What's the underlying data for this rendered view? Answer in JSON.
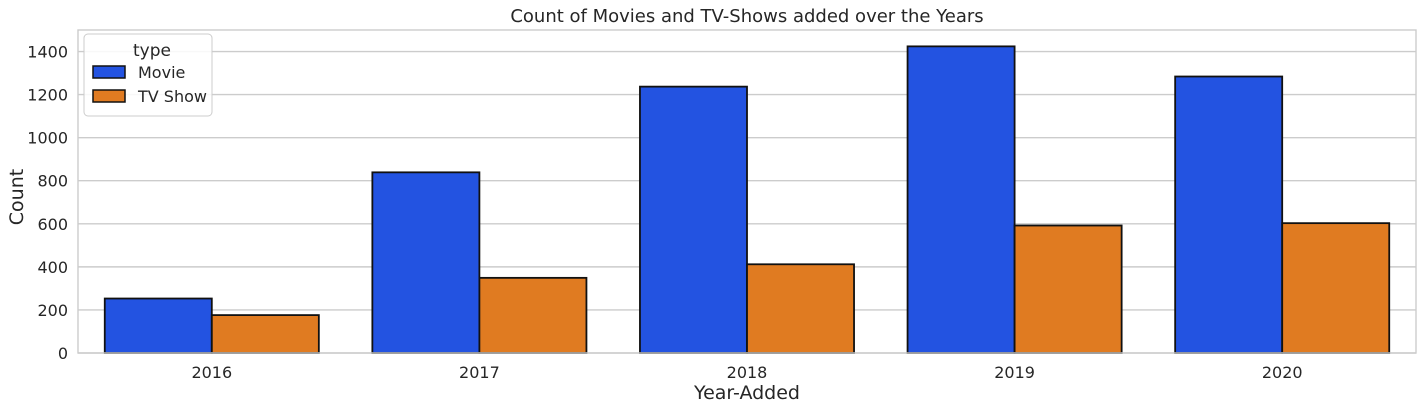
{
  "chart_data": {
    "type": "bar",
    "title": "Count of Movies and TV-Shows added over the Years",
    "xlabel": "Year-Added",
    "ylabel": "Count",
    "categories": [
      "2016",
      "2017",
      "2018",
      "2019",
      "2020"
    ],
    "series": [
      {
        "name": "Movie",
        "color": "#2353e1",
        "values": [
          253,
          839,
          1237,
          1424,
          1284
        ]
      },
      {
        "name": "TV Show",
        "color": "#e07b21",
        "values": [
          176,
          349,
          412,
          592,
          603
        ]
      }
    ],
    "ylim": [
      0,
      1500
    ],
    "yticks": [
      "0",
      "200",
      "400",
      "600",
      "800",
      "1000",
      "1200",
      "1400"
    ],
    "legend": {
      "title": "type",
      "position": "upper-left"
    },
    "grid": true,
    "edge_color": "#111111"
  }
}
